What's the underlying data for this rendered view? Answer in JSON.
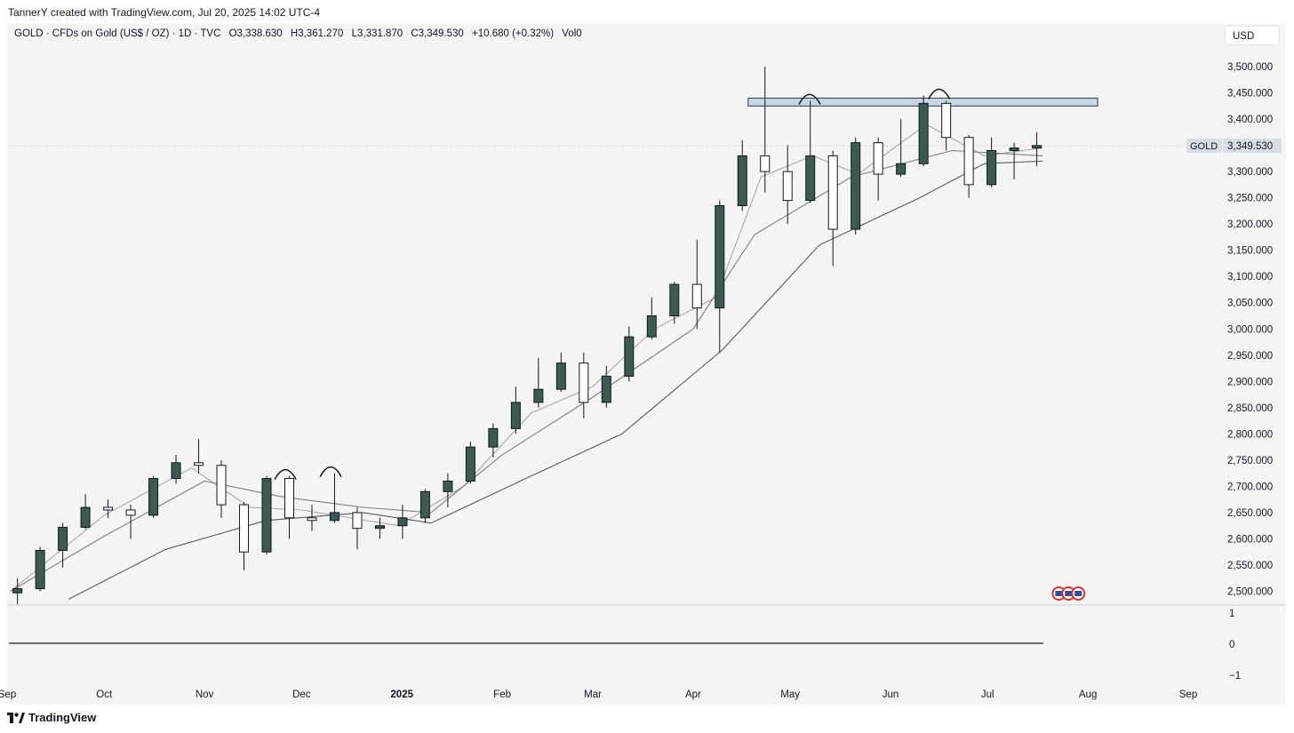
{
  "header": {
    "creator_line": "TannerY created with TradingView.com, Jul 20, 2025 14:02 UTC-4"
  },
  "legend": {
    "symbol_line": "GOLD · CFDs on Gold (US$ / OZ) · 1D · TVC",
    "open": "O3,338.630",
    "high": "H3,361.270",
    "low": "L3,331.870",
    "close": "C3,349.530",
    "change": "+10.680 (+0.32%)",
    "volume": "Vol0"
  },
  "currency_button": "USD",
  "price_label": {
    "symbol": "GOLD",
    "value": "3,349.530"
  },
  "footer": {
    "brand": "TradingView"
  },
  "colors": {
    "up_candle": "#3d5a50",
    "down_candle": "#ffffff",
    "wick": "#131722",
    "sma_fast": "#a8a8a8",
    "sma_mid": "#7e7e7e",
    "sma_slow": "#5a5a5a",
    "resistance_zone": "#c9d6e3",
    "event_marker": "#e03030"
  },
  "chart_data": {
    "type": "candlestick",
    "price_axis": {
      "ticks": [
        "3,500.000",
        "3,450.000",
        "3,400.000",
        "3,350.000",
        "3,300.000",
        "3,250.000",
        "3,200.000",
        "3,150.000",
        "3,100.000",
        "3,050.000",
        "3,000.000",
        "2,950.000",
        "2,900.000",
        "2,850.000",
        "2,800.000",
        "2,750.000",
        "2,700.000",
        "2,650.000",
        "2,600.000",
        "2,550.000",
        "2,500.000"
      ],
      "ylim": [
        2488,
        3520
      ]
    },
    "indicator_axis": {
      "ticks": [
        "1",
        "0",
        "−1"
      ],
      "value": 0
    },
    "time_axis": {
      "labels": [
        {
          "text": "Sep",
          "date": "2024-09-01",
          "bold": false
        },
        {
          "text": "Oct",
          "date": "2024-10-01",
          "bold": false
        },
        {
          "text": "Nov",
          "date": "2024-11-01",
          "bold": false
        },
        {
          "text": "Dec",
          "date": "2024-12-01",
          "bold": false
        },
        {
          "text": "2025",
          "date": "2025-01-01",
          "bold": true
        },
        {
          "text": "Feb",
          "date": "2025-02-01",
          "bold": false
        },
        {
          "text": "Mar",
          "date": "2025-03-01",
          "bold": false
        },
        {
          "text": "Apr",
          "date": "2025-04-01",
          "bold": false
        },
        {
          "text": "May",
          "date": "2025-05-01",
          "bold": false
        },
        {
          "text": "Jun",
          "date": "2025-06-01",
          "bold": false
        },
        {
          "text": "Jul",
          "date": "2025-07-01",
          "bold": false
        },
        {
          "text": "Aug",
          "date": "2025-08-01",
          "bold": false
        },
        {
          "text": "Sep",
          "date": "2025-09-01",
          "bold": false
        }
      ]
    },
    "resistance_zone": {
      "low": 3425,
      "high": 3440,
      "from": "2025-04-18",
      "to": "2025-08-04"
    },
    "candles_weekly": [
      {
        "date": "2024-09-02",
        "open": 2497,
        "high": 2525,
        "low": 2475,
        "close": 2505
      },
      {
        "date": "2024-09-09",
        "open": 2505,
        "high": 2585,
        "low": 2500,
        "close": 2578
      },
      {
        "date": "2024-09-16",
        "open": 2578,
        "high": 2630,
        "low": 2545,
        "close": 2622
      },
      {
        "date": "2024-09-23",
        "open": 2622,
        "high": 2685,
        "low": 2618,
        "close": 2660
      },
      {
        "date": "2024-09-30",
        "open": 2660,
        "high": 2675,
        "low": 2640,
        "close": 2655
      },
      {
        "date": "2024-10-07",
        "open": 2655,
        "high": 2665,
        "low": 2600,
        "close": 2645
      },
      {
        "date": "2024-10-14",
        "open": 2645,
        "high": 2720,
        "low": 2640,
        "close": 2715
      },
      {
        "date": "2024-10-21",
        "open": 2715,
        "high": 2760,
        "low": 2705,
        "close": 2745
      },
      {
        "date": "2024-10-28",
        "open": 2745,
        "high": 2790,
        "low": 2725,
        "close": 2740
      },
      {
        "date": "2024-11-04",
        "open": 2740,
        "high": 2750,
        "low": 2640,
        "close": 2665
      },
      {
        "date": "2024-11-11",
        "open": 2665,
        "high": 2670,
        "low": 2540,
        "close": 2575
      },
      {
        "date": "2024-11-18",
        "open": 2575,
        "high": 2720,
        "low": 2570,
        "close": 2715
      },
      {
        "date": "2024-11-25",
        "open": 2715,
        "high": 2720,
        "low": 2600,
        "close": 2640
      },
      {
        "date": "2024-12-02",
        "open": 2640,
        "high": 2665,
        "low": 2615,
        "close": 2635
      },
      {
        "date": "2024-12-09",
        "open": 2635,
        "high": 2725,
        "low": 2630,
        "close": 2650
      },
      {
        "date": "2024-12-16",
        "open": 2650,
        "high": 2660,
        "low": 2580,
        "close": 2620
      },
      {
        "date": "2024-12-23",
        "open": 2620,
        "high": 2640,
        "low": 2600,
        "close": 2625
      },
      {
        "date": "2024-12-30",
        "open": 2625,
        "high": 2665,
        "low": 2600,
        "close": 2640
      },
      {
        "date": "2025-01-06",
        "open": 2640,
        "high": 2695,
        "low": 2630,
        "close": 2690
      },
      {
        "date": "2025-01-13",
        "open": 2690,
        "high": 2725,
        "low": 2660,
        "close": 2710
      },
      {
        "date": "2025-01-20",
        "open": 2710,
        "high": 2785,
        "low": 2705,
        "close": 2775
      },
      {
        "date": "2025-01-27",
        "open": 2775,
        "high": 2820,
        "low": 2755,
        "close": 2810
      },
      {
        "date": "2025-02-03",
        "open": 2810,
        "high": 2890,
        "low": 2800,
        "close": 2860
      },
      {
        "date": "2025-02-10",
        "open": 2860,
        "high": 2945,
        "low": 2850,
        "close": 2885
      },
      {
        "date": "2025-02-17",
        "open": 2885,
        "high": 2955,
        "low": 2880,
        "close": 2935
      },
      {
        "date": "2025-02-24",
        "open": 2935,
        "high": 2955,
        "low": 2830,
        "close": 2860
      },
      {
        "date": "2025-03-03",
        "open": 2860,
        "high": 2930,
        "low": 2850,
        "close": 2910
      },
      {
        "date": "2025-03-10",
        "open": 2910,
        "high": 3005,
        "low": 2900,
        "close": 2985
      },
      {
        "date": "2025-03-17",
        "open": 2985,
        "high": 3060,
        "low": 2980,
        "close": 3025
      },
      {
        "date": "2025-03-24",
        "open": 3025,
        "high": 3090,
        "low": 3010,
        "close": 3085
      },
      {
        "date": "2025-03-31",
        "open": 3085,
        "high": 3170,
        "low": 3000,
        "close": 3040
      },
      {
        "date": "2025-04-07",
        "open": 3040,
        "high": 3245,
        "low": 2955,
        "close": 3235
      },
      {
        "date": "2025-04-14",
        "open": 3235,
        "high": 3360,
        "low": 3225,
        "close": 3330
      },
      {
        "date": "2025-04-21",
        "open": 3330,
        "high": 3500,
        "low": 3260,
        "close": 3300
      },
      {
        "date": "2025-04-28",
        "open": 3300,
        "high": 3350,
        "low": 3200,
        "close": 3245
      },
      {
        "date": "2025-05-05",
        "open": 3245,
        "high": 3435,
        "low": 3240,
        "close": 3330
      },
      {
        "date": "2025-05-12",
        "open": 3330,
        "high": 3340,
        "low": 3120,
        "close": 3190
      },
      {
        "date": "2025-05-19",
        "open": 3190,
        "high": 3365,
        "low": 3180,
        "close": 3355
      },
      {
        "date": "2025-05-26",
        "open": 3355,
        "high": 3365,
        "low": 3245,
        "close": 3295
      },
      {
        "date": "2025-06-02",
        "open": 3295,
        "high": 3400,
        "low": 3290,
        "close": 3315
      },
      {
        "date": "2025-06-09",
        "open": 3315,
        "high": 3445,
        "low": 3310,
        "close": 3430
      },
      {
        "date": "2025-06-16",
        "open": 3430,
        "high": 3435,
        "low": 3340,
        "close": 3365
      },
      {
        "date": "2025-06-23",
        "open": 3365,
        "high": 3370,
        "low": 3250,
        "close": 3275
      },
      {
        "date": "2025-06-30",
        "open": 3275,
        "high": 3365,
        "low": 3270,
        "close": 3340
      },
      {
        "date": "2025-07-07",
        "open": 3340,
        "high": 3355,
        "low": 3285,
        "close": 3345
      },
      {
        "date": "2025-07-14",
        "open": 3345,
        "high": 3375,
        "low": 3310,
        "close": 3349.53
      }
    ],
    "moving_averages": [
      {
        "name": "fast",
        "points": [
          [
            "2024-09-02",
            2500
          ],
          [
            "2024-10-01",
            2645
          ],
          [
            "2024-10-28",
            2735
          ],
          [
            "2024-11-15",
            2660
          ],
          [
            "2024-12-01",
            2655
          ],
          [
            "2024-12-31",
            2625
          ],
          [
            "2025-01-20",
            2700
          ],
          [
            "2025-02-10",
            2840
          ],
          [
            "2025-03-01",
            2890
          ],
          [
            "2025-03-20",
            3000
          ],
          [
            "2025-04-08",
            3060
          ],
          [
            "2025-04-22",
            3290
          ],
          [
            "2025-05-08",
            3330
          ],
          [
            "2025-05-22",
            3295
          ],
          [
            "2025-06-12",
            3390
          ],
          [
            "2025-06-30",
            3330
          ],
          [
            "2025-07-18",
            3345
          ]
        ]
      },
      {
        "name": "mid",
        "points": [
          [
            "2024-09-02",
            2500
          ],
          [
            "2024-10-01",
            2605
          ],
          [
            "2024-11-01",
            2710
          ],
          [
            "2024-11-25",
            2680
          ],
          [
            "2024-12-20",
            2660
          ],
          [
            "2025-01-10",
            2650
          ],
          [
            "2025-02-01",
            2760
          ],
          [
            "2025-03-01",
            2870
          ],
          [
            "2025-04-01",
            3000
          ],
          [
            "2025-04-20",
            3180
          ],
          [
            "2025-05-20",
            3290
          ],
          [
            "2025-06-20",
            3340
          ],
          [
            "2025-07-18",
            3330
          ]
        ]
      },
      {
        "name": "slow",
        "points": [
          [
            "2024-09-20",
            2485
          ],
          [
            "2024-10-20",
            2580
          ],
          [
            "2024-11-20",
            2635
          ],
          [
            "2024-12-20",
            2650
          ],
          [
            "2025-01-10",
            2630
          ],
          [
            "2025-02-10",
            2720
          ],
          [
            "2025-03-10",
            2800
          ],
          [
            "2025-04-10",
            2960
          ],
          [
            "2025-05-10",
            3160
          ],
          [
            "2025-06-10",
            3250
          ],
          [
            "2025-06-30",
            3315
          ],
          [
            "2025-07-18",
            3320
          ]
        ]
      }
    ],
    "arc_markers": [
      {
        "date": "2024-11-26",
        "price": 2720
      },
      {
        "date": "2024-12-10",
        "price": 2725
      },
      {
        "date": "2025-05-07",
        "price": 3435
      },
      {
        "date": "2025-06-16",
        "price": 3445
      }
    ],
    "event_markers": [
      {
        "date": "2025-07-23"
      },
      {
        "date": "2025-07-26"
      },
      {
        "date": "2025-07-29"
      }
    ]
  }
}
